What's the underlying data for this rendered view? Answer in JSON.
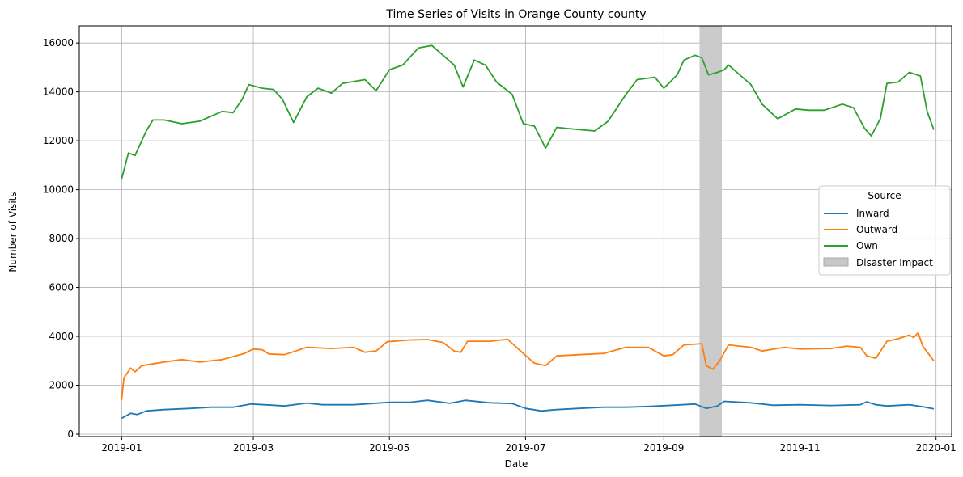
{
  "chart_data": {
    "type": "line",
    "title": "Time Series of Visits in Orange County county",
    "xlabel": "Date",
    "ylabel": "Number of Visits",
    "x_ticks": [
      "2019-01",
      "2019-03",
      "2019-05",
      "2019-07",
      "2019-09",
      "2019-11",
      "2020-01"
    ],
    "y_ticks": [
      "0",
      "2000",
      "4000",
      "6000",
      "8000",
      "10000",
      "12000",
      "14000",
      "16000"
    ],
    "xlim": [
      "2018-12-13",
      "2020-01-08"
    ],
    "ylim": [
      -100,
      16700
    ],
    "grid": true,
    "legend": {
      "title": "Source",
      "placement": "center-right",
      "items": [
        "Inward",
        "Outward",
        "Own",
        "Disaster Impact"
      ]
    },
    "colors": {
      "Inward": "#1f77b4",
      "Outward": "#ff7f0e",
      "Own": "#2ca02c",
      "Disaster Impact": "#c8c8c8"
    },
    "disaster_span": [
      "2019-09-17",
      "2019-09-27"
    ],
    "series": [
      {
        "name": "Inward",
        "points": [
          [
            "2019-01-01",
            650
          ],
          [
            "2019-01-05",
            850
          ],
          [
            "2019-01-08",
            800
          ],
          [
            "2019-01-12",
            950
          ],
          [
            "2019-01-20",
            1000
          ],
          [
            "2019-02-01",
            1050
          ],
          [
            "2019-02-10",
            1100
          ],
          [
            "2019-02-20",
            1100
          ],
          [
            "2019-02-28",
            1230
          ],
          [
            "2019-03-10",
            1180
          ],
          [
            "2019-03-15",
            1150
          ],
          [
            "2019-03-25",
            1270
          ],
          [
            "2019-04-01",
            1200
          ],
          [
            "2019-04-15",
            1200
          ],
          [
            "2019-05-01",
            1300
          ],
          [
            "2019-05-10",
            1300
          ],
          [
            "2019-05-18",
            1380
          ],
          [
            "2019-05-28",
            1260
          ],
          [
            "2019-06-04",
            1380
          ],
          [
            "2019-06-15",
            1280
          ],
          [
            "2019-06-25",
            1250
          ],
          [
            "2019-07-01",
            1050
          ],
          [
            "2019-07-08",
            950
          ],
          [
            "2019-07-15",
            1000
          ],
          [
            "2019-07-25",
            1050
          ],
          [
            "2019-08-05",
            1100
          ],
          [
            "2019-08-15",
            1100
          ],
          [
            "2019-08-25",
            1130
          ],
          [
            "2019-09-05",
            1180
          ],
          [
            "2019-09-15",
            1230
          ],
          [
            "2019-09-20",
            1050
          ],
          [
            "2019-09-25",
            1150
          ],
          [
            "2019-09-28",
            1340
          ],
          [
            "2019-10-10",
            1280
          ],
          [
            "2019-10-20",
            1180
          ],
          [
            "2019-11-01",
            1200
          ],
          [
            "2019-11-15",
            1170
          ],
          [
            "2019-11-28",
            1200
          ],
          [
            "2019-12-01",
            1320
          ],
          [
            "2019-12-05",
            1200
          ],
          [
            "2019-12-10",
            1150
          ],
          [
            "2019-12-20",
            1200
          ],
          [
            "2019-12-26",
            1120
          ],
          [
            "2019-12-31",
            1030
          ]
        ]
      },
      {
        "name": "Outward",
        "points": [
          [
            "2019-01-01",
            1400
          ],
          [
            "2019-01-02",
            2300
          ],
          [
            "2019-01-05",
            2700
          ],
          [
            "2019-01-07",
            2550
          ],
          [
            "2019-01-10",
            2800
          ],
          [
            "2019-01-20",
            2950
          ],
          [
            "2019-01-28",
            3050
          ],
          [
            "2019-02-05",
            2950
          ],
          [
            "2019-02-15",
            3050
          ],
          [
            "2019-02-25",
            3300
          ],
          [
            "2019-03-01",
            3480
          ],
          [
            "2019-03-05",
            3450
          ],
          [
            "2019-03-08",
            3280
          ],
          [
            "2019-03-15",
            3250
          ],
          [
            "2019-03-25",
            3550
          ],
          [
            "2019-04-05",
            3500
          ],
          [
            "2019-04-15",
            3550
          ],
          [
            "2019-04-20",
            3350
          ],
          [
            "2019-04-25",
            3400
          ],
          [
            "2019-04-30",
            3780
          ],
          [
            "2019-05-10",
            3850
          ],
          [
            "2019-05-18",
            3870
          ],
          [
            "2019-05-25",
            3750
          ],
          [
            "2019-05-30",
            3400
          ],
          [
            "2019-06-02",
            3350
          ],
          [
            "2019-06-05",
            3800
          ],
          [
            "2019-06-15",
            3800
          ],
          [
            "2019-06-23",
            3880
          ],
          [
            "2019-06-30",
            3300
          ],
          [
            "2019-07-05",
            2900
          ],
          [
            "2019-07-10",
            2800
          ],
          [
            "2019-07-15",
            3200
          ],
          [
            "2019-07-25",
            3250
          ],
          [
            "2019-08-05",
            3300
          ],
          [
            "2019-08-15",
            3550
          ],
          [
            "2019-08-25",
            3550
          ],
          [
            "2019-09-01",
            3200
          ],
          [
            "2019-09-05",
            3250
          ],
          [
            "2019-09-10",
            3650
          ],
          [
            "2019-09-18",
            3700
          ],
          [
            "2019-09-20",
            2800
          ],
          [
            "2019-09-23",
            2650
          ],
          [
            "2019-09-26",
            3000
          ],
          [
            "2019-09-30",
            3650
          ],
          [
            "2019-10-10",
            3550
          ],
          [
            "2019-10-15",
            3400
          ],
          [
            "2019-10-25",
            3550
          ],
          [
            "2019-11-01",
            3480
          ],
          [
            "2019-11-15",
            3500
          ],
          [
            "2019-11-22",
            3600
          ],
          [
            "2019-11-28",
            3550
          ],
          [
            "2019-12-01",
            3200
          ],
          [
            "2019-12-05",
            3100
          ],
          [
            "2019-12-10",
            3800
          ],
          [
            "2019-12-15",
            3900
          ],
          [
            "2019-12-20",
            4050
          ],
          [
            "2019-12-22",
            3950
          ],
          [
            "2019-12-24",
            4150
          ],
          [
            "2019-12-26",
            3600
          ],
          [
            "2019-12-31",
            3000
          ]
        ]
      },
      {
        "name": "Own",
        "points": [
          [
            "2019-01-01",
            10450
          ],
          [
            "2019-01-04",
            11500
          ],
          [
            "2019-01-07",
            11400
          ],
          [
            "2019-01-12",
            12400
          ],
          [
            "2019-01-15",
            12850
          ],
          [
            "2019-01-20",
            12850
          ],
          [
            "2019-01-28",
            12700
          ],
          [
            "2019-02-05",
            12800
          ],
          [
            "2019-02-15",
            13200
          ],
          [
            "2019-02-20",
            13150
          ],
          [
            "2019-02-24",
            13700
          ],
          [
            "2019-02-27",
            14300
          ],
          [
            "2019-03-05",
            14150
          ],
          [
            "2019-03-10",
            14100
          ],
          [
            "2019-03-14",
            13700
          ],
          [
            "2019-03-19",
            12750
          ],
          [
            "2019-03-25",
            13800
          ],
          [
            "2019-03-30",
            14150
          ],
          [
            "2019-04-05",
            13950
          ],
          [
            "2019-04-10",
            14350
          ],
          [
            "2019-04-20",
            14500
          ],
          [
            "2019-04-25",
            14050
          ],
          [
            "2019-05-01",
            14900
          ],
          [
            "2019-05-07",
            15100
          ],
          [
            "2019-05-14",
            15800
          ],
          [
            "2019-05-20",
            15900
          ],
          [
            "2019-05-25",
            15500
          ],
          [
            "2019-05-30",
            15100
          ],
          [
            "2019-06-03",
            14200
          ],
          [
            "2019-06-08",
            15300
          ],
          [
            "2019-06-13",
            15100
          ],
          [
            "2019-06-18",
            14400
          ],
          [
            "2019-06-25",
            13900
          ],
          [
            "2019-06-30",
            12700
          ],
          [
            "2019-07-05",
            12600
          ],
          [
            "2019-07-10",
            11700
          ],
          [
            "2019-07-15",
            12550
          ],
          [
            "2019-07-20",
            12500
          ],
          [
            "2019-08-01",
            12400
          ],
          [
            "2019-08-07",
            12800
          ],
          [
            "2019-08-15",
            13900
          ],
          [
            "2019-08-20",
            14500
          ],
          [
            "2019-08-28",
            14600
          ],
          [
            "2019-09-01",
            14150
          ],
          [
            "2019-09-07",
            14700
          ],
          [
            "2019-09-10",
            15300
          ],
          [
            "2019-09-15",
            15500
          ],
          [
            "2019-09-18",
            15400
          ],
          [
            "2019-09-21",
            14700
          ],
          [
            "2019-09-25",
            14800
          ],
          [
            "2019-09-28",
            14900
          ],
          [
            "2019-09-30",
            15100
          ],
          [
            "2019-10-05",
            14700
          ],
          [
            "2019-10-10",
            14300
          ],
          [
            "2019-10-15",
            13500
          ],
          [
            "2019-10-22",
            12900
          ],
          [
            "2019-10-30",
            13300
          ],
          [
            "2019-11-05",
            13250
          ],
          [
            "2019-11-12",
            13250
          ],
          [
            "2019-11-20",
            13500
          ],
          [
            "2019-11-25",
            13350
          ],
          [
            "2019-11-30",
            12500
          ],
          [
            "2019-12-03",
            12200
          ],
          [
            "2019-12-07",
            12900
          ],
          [
            "2019-12-10",
            14350
          ],
          [
            "2019-12-15",
            14400
          ],
          [
            "2019-12-20",
            14800
          ],
          [
            "2019-12-25",
            14650
          ],
          [
            "2019-12-28",
            13200
          ],
          [
            "2019-12-31",
            12450
          ]
        ]
      }
    ]
  }
}
